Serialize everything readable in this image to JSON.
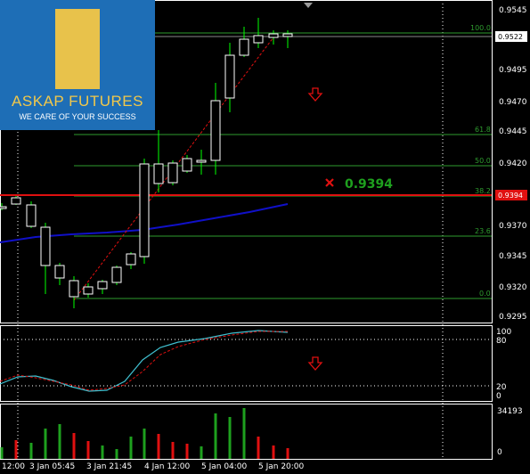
{
  "logo": {
    "title": "ASKAP FUTURES",
    "tagline": "WE CARE OF YOUR SUCCESS"
  },
  "price_axis": {
    "labels": [
      "0.9545",
      "0.9495",
      "0.9470",
      "0.9445",
      "0.9420",
      "0.9370",
      "0.9345",
      "0.9320",
      "0.9295"
    ],
    "current_price": "0.9522",
    "marker_price": "0.9394"
  },
  "fib_levels": [
    "100.0",
    "61.8",
    "50.0",
    "38.2",
    "23.6",
    "0.0"
  ],
  "signal": {
    "label": "0.9394",
    "icon": "x-icon"
  },
  "oscillator_axis": [
    "100",
    "80",
    "20",
    "0"
  ],
  "volume_axis": "34193",
  "time_axis": [
    "12:00",
    "3 Jan 05:45",
    "3 Jan 21:45",
    "4 Jan 12:00",
    "5 Jan 04:00",
    "5 Jan 20:00"
  ],
  "colors": {
    "bull": "#ffffff",
    "bear": "#ffffff",
    "candle_edge": "#00ff00",
    "fib": "#2e9b2e",
    "ma": "#1010c8",
    "marker": "#e01010",
    "arrow": "#e01010",
    "vol_up": "#1ea01e",
    "vol_down": "#e01010"
  }
}
